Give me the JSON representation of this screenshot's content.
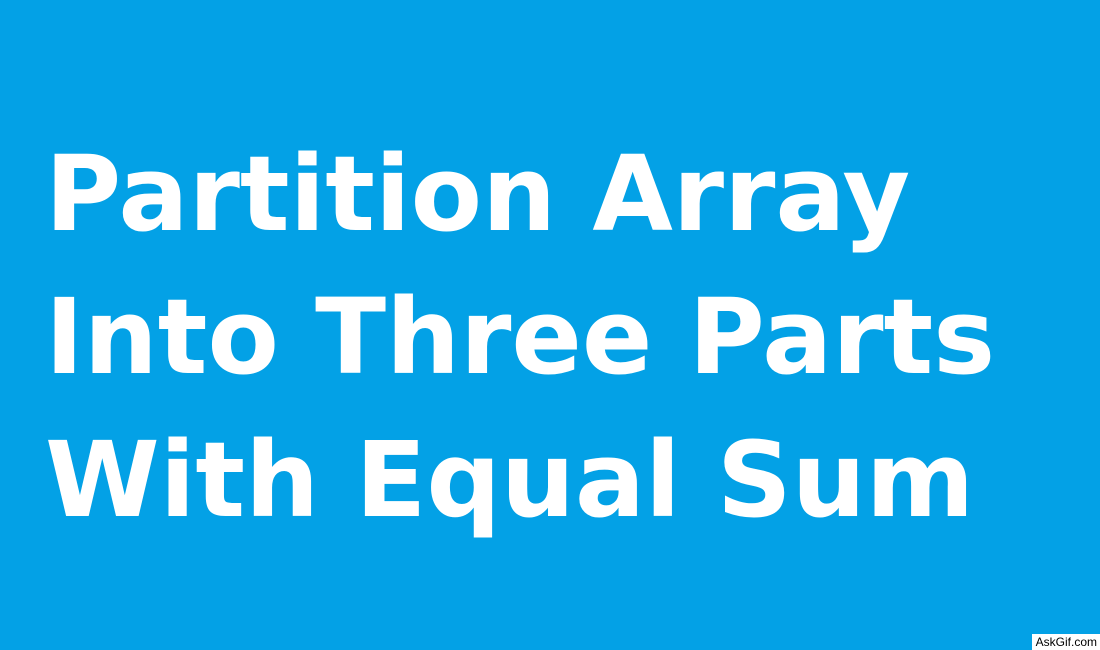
{
  "colors": {
    "background": "#03A1E6",
    "title_text": "#FFFFFF",
    "watermark_bg": "#FFFFFF",
    "watermark_text": "#000000"
  },
  "title": {
    "lines": [
      "Partition Array",
      "Into Three Parts",
      "With Equal Sum"
    ]
  },
  "watermark": {
    "text": "AskGif.com"
  }
}
